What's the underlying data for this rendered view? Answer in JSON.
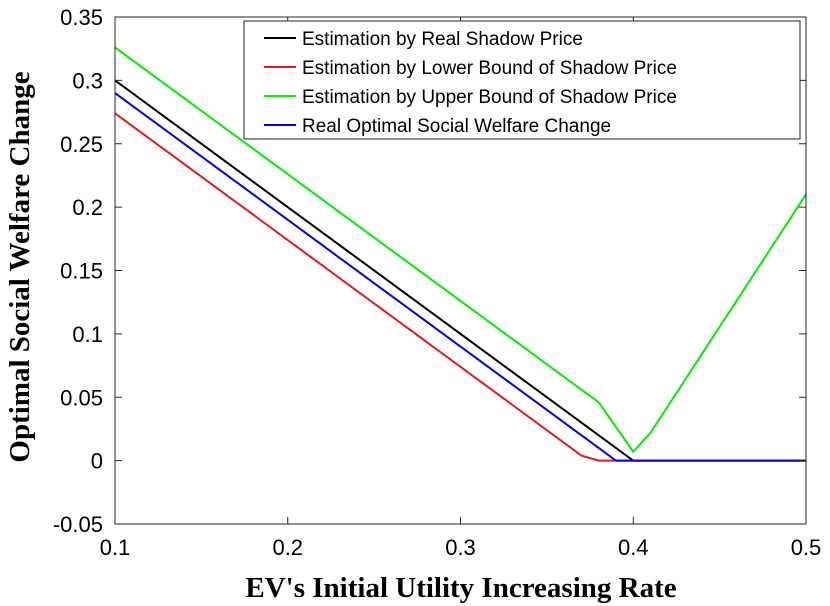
{
  "chart_data": {
    "type": "line",
    "title": "",
    "xlabel": "EV's Initial Utility Increasing Rate",
    "ylabel": "Optimal Social Welfare Change",
    "xlim": [
      0.1,
      0.5
    ],
    "ylim": [
      -0.05,
      0.35
    ],
    "xticks": [
      0.1,
      0.2,
      0.3,
      0.4,
      0.5
    ],
    "xtick_labels": [
      "0.1",
      "0.2",
      "0.3",
      "0.4",
      "0.5"
    ],
    "yticks": [
      -0.05,
      0,
      0.05,
      0.1,
      0.15,
      0.2,
      0.25,
      0.3,
      0.35
    ],
    "ytick_labels": [
      "-0.05",
      "0",
      "0.05",
      "0.1",
      "0.15",
      "0.2",
      "0.25",
      "0.3",
      "0.35"
    ],
    "grid": false,
    "legend_position": "top-right",
    "series": [
      {
        "name": "Estimation by Real Shadow Price",
        "color": "#000000",
        "x": [
          0.1,
          0.4,
          0.5
        ],
        "y": [
          0.3,
          0.0,
          0.0
        ]
      },
      {
        "name": "Estimation by Lower Bound of Shadow Price",
        "color": "#e31a1c",
        "x": [
          0.1,
          0.37,
          0.38,
          0.5
        ],
        "y": [
          0.274,
          0.004,
          0.0,
          0.0
        ]
      },
      {
        "name": "Estimation by Upper Bound of Shadow Price",
        "color": "#00ee00",
        "x": [
          0.1,
          0.38,
          0.4,
          0.41,
          0.5
        ],
        "y": [
          0.326,
          0.046,
          0.007,
          0.022,
          0.21
        ]
      },
      {
        "name": "Real Optimal Social Welfare Change",
        "color": "#0000ee",
        "x": [
          0.1,
          0.38,
          0.39,
          0.5
        ],
        "y": [
          0.29,
          0.01,
          0.0,
          0.0
        ]
      }
    ]
  }
}
